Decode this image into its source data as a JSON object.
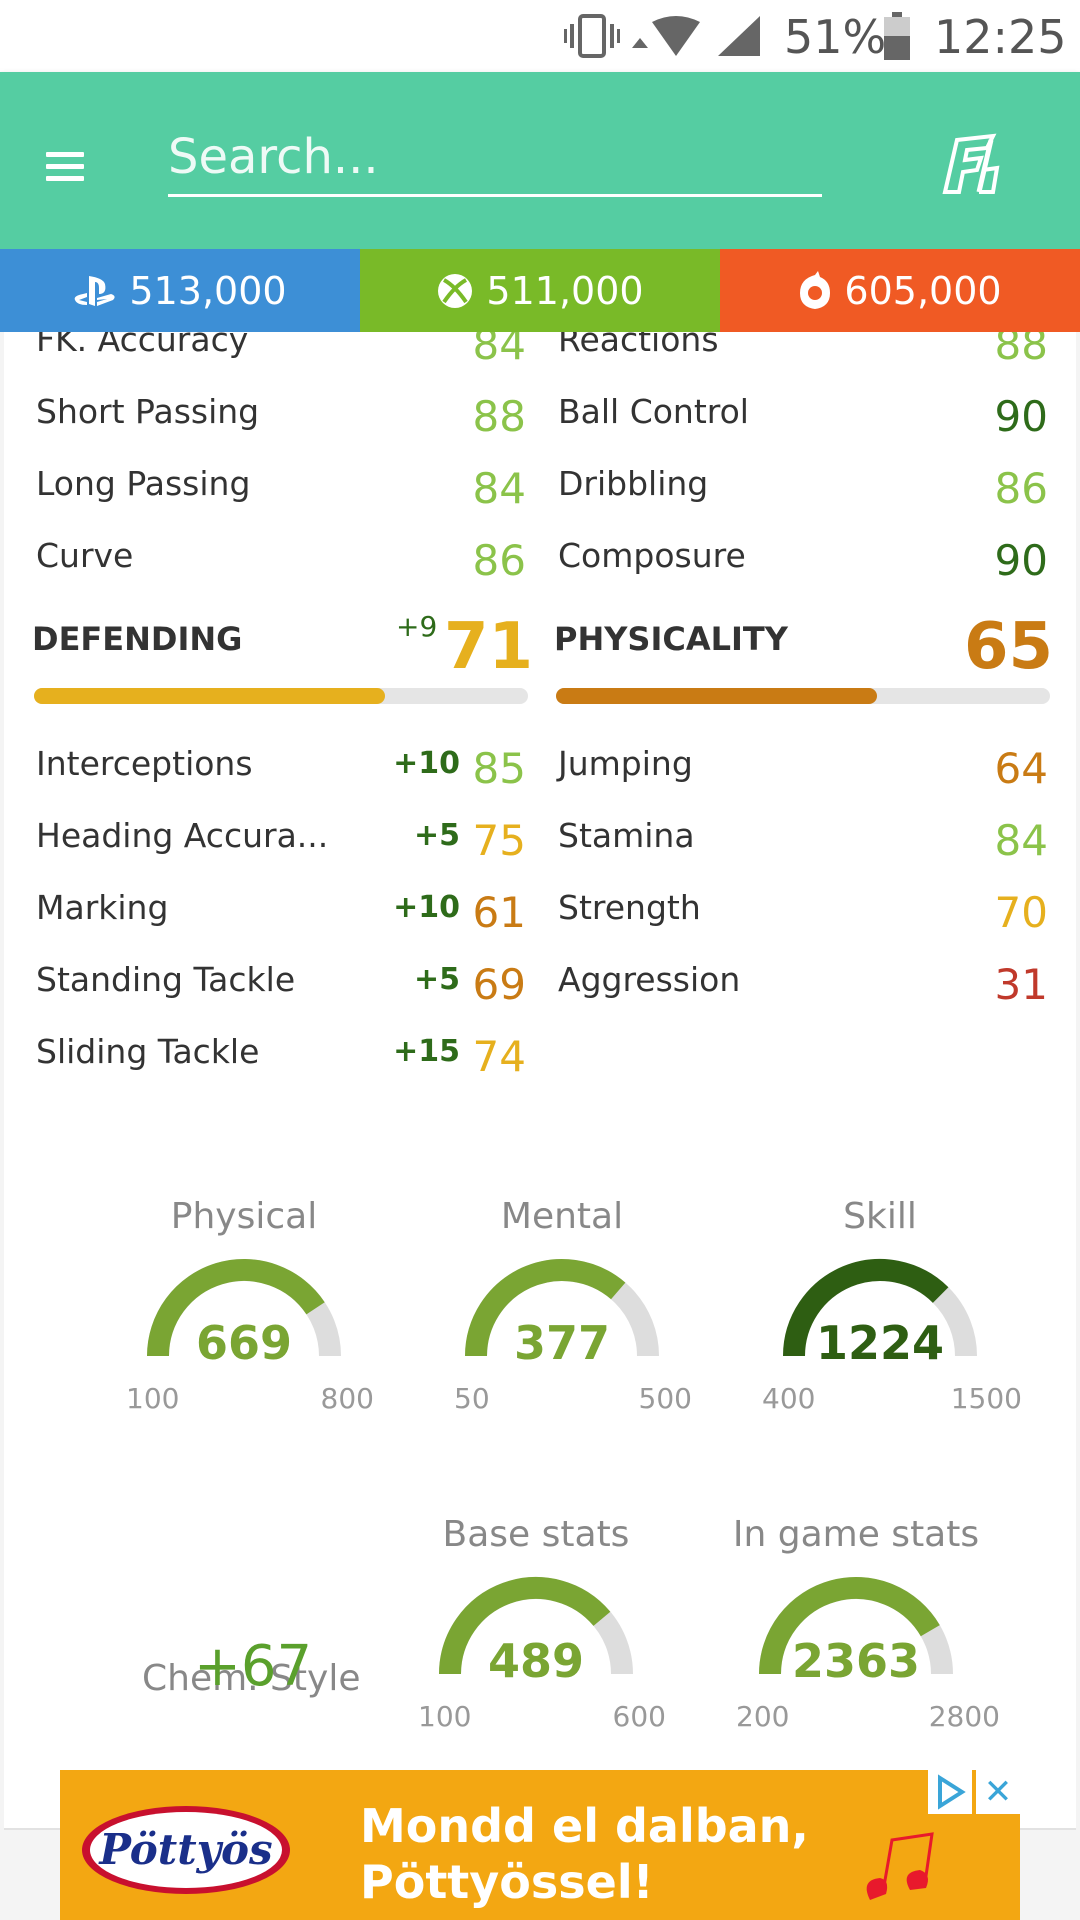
{
  "status_bar": {
    "battery": "51%",
    "time": "12:25",
    "icons": [
      "vibrate-icon",
      "wifi-icon",
      "signal-icon",
      "battery-icon"
    ]
  },
  "app_bar": {
    "search_placeholder": "Search...",
    "menu_icon": "hamburger-menu-icon",
    "logo": "futbin-logo"
  },
  "prices": [
    {
      "platform": "playstation",
      "icon": "playstation-icon",
      "value": "513,000",
      "color": "#3d8fd6"
    },
    {
      "platform": "xbox",
      "icon": "xbox-icon",
      "value": "511,000",
      "color": "#79ba28"
    },
    {
      "platform": "pc",
      "icon": "origin-icon",
      "value": "605,000",
      "color": "#f05a24"
    }
  ],
  "left_top_stats": [
    {
      "label": "FK. Accuracy",
      "value": "84"
    },
    {
      "label": "Short Passing",
      "value": "88"
    },
    {
      "label": "Long Passing",
      "value": "84"
    },
    {
      "label": "Curve",
      "value": "86"
    }
  ],
  "right_top_stats": [
    {
      "label": "Reactions",
      "value": "88"
    },
    {
      "label": "Ball Control",
      "value": "90"
    },
    {
      "label": "Dribbling",
      "value": "86"
    },
    {
      "label": "Composure",
      "value": "90"
    }
  ],
  "defending": {
    "title": "DEFENDING",
    "boost": "+9",
    "score": "71",
    "fill_fraction": 0.71,
    "color": "#e6b01e",
    "stats": [
      {
        "label": "Interceptions",
        "boost": "+10",
        "value": "85"
      },
      {
        "label": "Heading Accura...",
        "boost": "+5",
        "value": "75"
      },
      {
        "label": "Marking",
        "boost": "+10",
        "value": "61"
      },
      {
        "label": "Standing Tackle",
        "boost": "+5",
        "value": "69"
      },
      {
        "label": "Sliding Tackle",
        "boost": "+15",
        "value": "74"
      }
    ]
  },
  "physicality": {
    "title": "PHYSICALITY",
    "score": "65",
    "fill_fraction": 0.65,
    "color": "#c97b14",
    "stats": [
      {
        "label": "Jumping",
        "value": "64"
      },
      {
        "label": "Stamina",
        "value": "84"
      },
      {
        "label": "Strength",
        "value": "70"
      },
      {
        "label": "Aggression",
        "value": "31"
      }
    ]
  },
  "gauges": [
    {
      "title": "Physical",
      "value": "669",
      "min": "100",
      "max": "800",
      "color": "#7aa533"
    },
    {
      "title": "Mental",
      "value": "377",
      "min": "50",
      "max": "500",
      "color": "#7aa533"
    },
    {
      "title": "Skill",
      "value": "1224",
      "min": "400",
      "max": "1500",
      "color": "#2e5e12"
    },
    {
      "title": "Base stats",
      "value": "489",
      "min": "100",
      "max": "600",
      "color": "#7aa533"
    },
    {
      "title": "In game stats",
      "value": "2363",
      "min": "200",
      "max": "2800",
      "color": "#7aa533"
    }
  ],
  "chem_style": {
    "label": "Chem. Style",
    "boost": "+67"
  },
  "ad": {
    "brand": "Pöttyös",
    "line1": "Mondd el dalban,",
    "line2": "Pöttyössel!",
    "close_label": "✕"
  }
}
